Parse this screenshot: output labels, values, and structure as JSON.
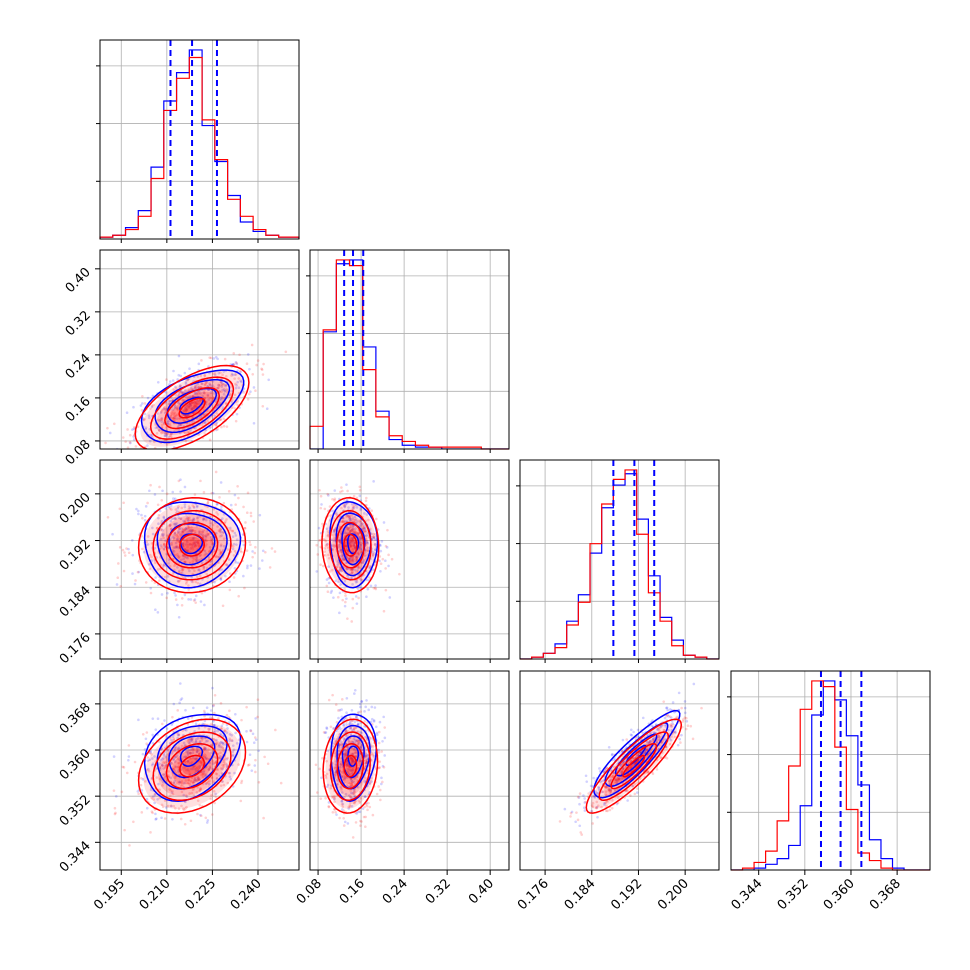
{
  "colors": {
    "series_a": "#0000ff",
    "series_b": "#ff0000",
    "grid": "#b0b0b0",
    "frame": "#000000"
  },
  "chart_data": {
    "type": "corner",
    "grid": true,
    "parameters": [
      {
        "range": [
          0.188,
          0.2535
        ],
        "ticks": [
          "0.195",
          "0.210",
          "0.225",
          "0.240"
        ]
      },
      {
        "range": [
          0.065,
          0.435
        ],
        "ticks": [
          "0.08",
          "0.16",
          "0.24",
          "0.32",
          "0.40"
        ]
      },
      {
        "range": [
          0.1717,
          0.2058
        ],
        "ticks": [
          "0.176",
          "0.184",
          "0.192",
          "0.200"
        ]
      },
      {
        "range": [
          0.3392,
          0.3737
        ],
        "ticks": [
          "0.344",
          "0.352",
          "0.360",
          "0.368"
        ]
      }
    ],
    "quantiles": [
      [
        0.2112,
        0.2183,
        0.2265
      ],
      [
        0.1285,
        0.145,
        0.164
      ],
      [
        0.1877,
        0.1913,
        0.1947
      ],
      [
        0.3548,
        0.3582,
        0.3618
      ]
    ],
    "histograms": [
      {
        "bins": [
          0.188,
          0.1922,
          0.1964,
          0.2006,
          0.2048,
          0.209,
          0.2132,
          0.2174,
          0.2216,
          0.2258,
          0.23,
          0.2342,
          0.2384,
          0.2426,
          0.2468,
          0.2535
        ],
        "a": [
          0.01,
          0.02,
          0.06,
          0.15,
          0.38,
          0.73,
          0.88,
          1.0,
          0.6,
          0.41,
          0.23,
          0.09,
          0.04,
          0.02,
          0.01
        ],
        "b": [
          0.01,
          0.02,
          0.05,
          0.12,
          0.32,
          0.68,
          0.85,
          0.96,
          0.63,
          0.42,
          0.21,
          0.12,
          0.05,
          0.02,
          0.01
        ]
      },
      {
        "bins": [
          0.065,
          0.0895,
          0.114,
          0.1385,
          0.163,
          0.1875,
          0.212,
          0.2365,
          0.261,
          0.2855,
          0.31,
          0.3345,
          0.359,
          0.3835,
          0.408,
          0.435
        ],
        "a": [
          0.0,
          0.62,
          0.98,
          1.0,
          0.54,
          0.2,
          0.05,
          0.02,
          0.01,
          0.01,
          0.0,
          0.0,
          0.0,
          0.0,
          0.0
        ],
        "b": [
          0.12,
          0.63,
          1.0,
          0.97,
          0.42,
          0.17,
          0.07,
          0.04,
          0.02,
          0.01,
          0.01,
          0.01,
          0.01,
          0.0,
          0.0
        ]
      },
      {
        "bins": [
          0.1717,
          0.1737,
          0.1757,
          0.1777,
          0.1797,
          0.1817,
          0.1837,
          0.1857,
          0.1877,
          0.1897,
          0.1917,
          0.1937,
          0.1957,
          0.1977,
          0.1997,
          0.2017,
          0.2037,
          0.2058
        ],
        "a": [
          0.0,
          0.01,
          0.03,
          0.08,
          0.2,
          0.34,
          0.56,
          0.8,
          0.92,
          0.98,
          0.74,
          0.44,
          0.22,
          0.1,
          0.02,
          0.01,
          0.0
        ],
        "b": [
          0.0,
          0.01,
          0.03,
          0.06,
          0.18,
          0.3,
          0.61,
          0.82,
          0.95,
          1.0,
          0.66,
          0.35,
          0.2,
          0.07,
          0.02,
          0.01,
          0.0
        ]
      },
      {
        "bins": [
          0.3392,
          0.3412,
          0.3432,
          0.3452,
          0.3472,
          0.3492,
          0.3512,
          0.3532,
          0.3552,
          0.3572,
          0.3592,
          0.3612,
          0.3632,
          0.3652,
          0.3672,
          0.3692,
          0.3712,
          0.3737
        ],
        "a": [
          0.0,
          0.0,
          0.01,
          0.03,
          0.06,
          0.13,
          0.34,
          0.82,
          1.0,
          0.9,
          0.71,
          0.45,
          0.16,
          0.06,
          0.01,
          0.0,
          0.0
        ],
        "b": [
          0.0,
          0.01,
          0.04,
          0.1,
          0.26,
          0.55,
          0.85,
          1.0,
          0.97,
          0.65,
          0.32,
          0.09,
          0.05,
          0.01,
          0.0,
          0.0,
          0.0
        ]
      }
    ],
    "pairs": [
      {
        "row": 1,
        "col": 0,
        "a": {
          "center": [
            0.218,
            0.146
          ],
          "sx": 0.008,
          "sy": 0.032,
          "rho": 0.55
        },
        "b": {
          "center": [
            0.2183,
            0.141
          ],
          "sx": 0.0085,
          "sy": 0.036,
          "rho": 0.6
        }
      },
      {
        "row": 2,
        "col": 0,
        "a": {
          "center": [
            0.218,
            0.1915
          ],
          "sx": 0.0075,
          "sy": 0.0035,
          "rho": 0.0
        },
        "b": {
          "center": [
            0.2183,
            0.1912
          ],
          "sx": 0.008,
          "sy": 0.0037,
          "rho": 0.05
        }
      },
      {
        "row": 2,
        "col": 1,
        "a": {
          "center": [
            0.145,
            0.1915
          ],
          "sx": 0.021,
          "sy": 0.0035,
          "rho": -0.05
        },
        "b": {
          "center": [
            0.14,
            0.1912
          ],
          "sx": 0.024,
          "sy": 0.0037,
          "rho": -0.05
        }
      },
      {
        "row": 3,
        "col": 0,
        "a": {
          "center": [
            0.218,
            0.359
          ],
          "sx": 0.0075,
          "sy": 0.0036,
          "rho": 0.3
        },
        "b": {
          "center": [
            0.2183,
            0.3572
          ],
          "sx": 0.008,
          "sy": 0.0037,
          "rho": 0.3
        }
      },
      {
        "row": 3,
        "col": 1,
        "a": {
          "center": [
            0.145,
            0.359
          ],
          "sx": 0.02,
          "sy": 0.0036,
          "rho": 0.1
        },
        "b": {
          "center": [
            0.14,
            0.3572
          ],
          "sx": 0.023,
          "sy": 0.0037,
          "rho": 0.1
        }
      },
      {
        "row": 3,
        "col": 2,
        "a": {
          "center": [
            0.1915,
            0.359
          ],
          "sx": 0.0035,
          "sy": 0.0036,
          "rho": 0.88
        },
        "b": {
          "center": [
            0.1912,
            0.3572
          ],
          "sx": 0.0037,
          "sy": 0.0037,
          "rho": 0.88
        }
      }
    ]
  }
}
